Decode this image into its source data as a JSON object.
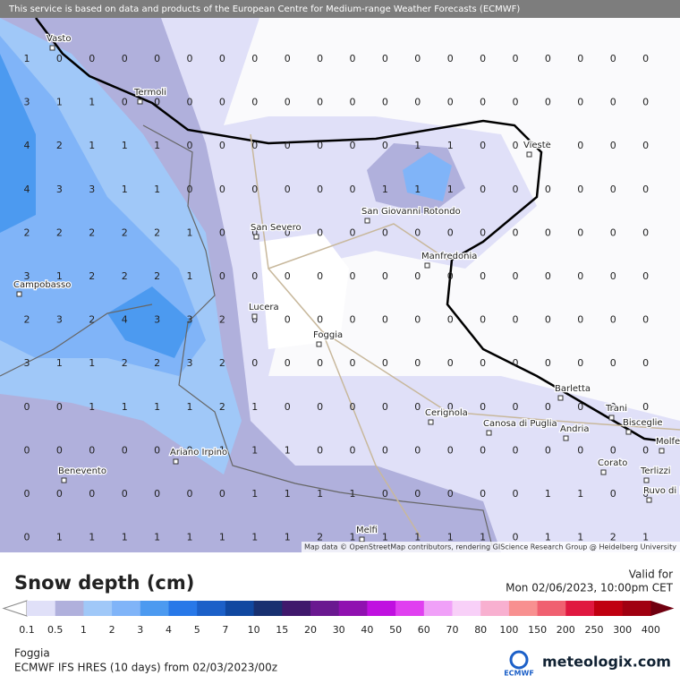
{
  "header": {
    "notice": "This service is based on data and products of the European Centre for Medium-range Weather Forecasts (ECMWF)"
  },
  "map": {
    "attribution": "Map data © OpenStreetMap contributors, rendering GIScience Research Group @ Heidelberg University",
    "cities": [
      "Vasto",
      "Termoli",
      "Vieste",
      "San Severo",
      "San Giovanni Rotondo",
      "Manfredonia",
      "Campobasso",
      "Lucera",
      "Foggia",
      "Barletta",
      "Trani",
      "Bisceglie",
      "Molfetta",
      "Cerignola",
      "Canosa di Puglia",
      "Andria",
      "Ariano Irpino",
      "Benevento",
      "Corato",
      "Terlizzi",
      "Ruvo di Puglia",
      "Melfi"
    ],
    "grid": [
      [
        1,
        0,
        0,
        0,
        0,
        0,
        0,
        0,
        0,
        0,
        0,
        0,
        0,
        0,
        0,
        0,
        0,
        0,
        0,
        0
      ],
      [
        3,
        1,
        1,
        0,
        0,
        0,
        0,
        0,
        0,
        0,
        0,
        0,
        0,
        0,
        0,
        0,
        0,
        0,
        0,
        0
      ],
      [
        4,
        2,
        1,
        1,
        1,
        0,
        0,
        0,
        0,
        0,
        0,
        0,
        1,
        1,
        0,
        0,
        0,
        0,
        0,
        0
      ],
      [
        4,
        3,
        3,
        1,
        1,
        0,
        0,
        0,
        0,
        0,
        0,
        1,
        1,
        1,
        0,
        0,
        0,
        0,
        0,
        0
      ],
      [
        2,
        2,
        2,
        2,
        2,
        1,
        0,
        0,
        0,
        0,
        0,
        0,
        0,
        0,
        0,
        0,
        0,
        0,
        0,
        0
      ],
      [
        3,
        1,
        2,
        2,
        2,
        1,
        0,
        0,
        0,
        0,
        0,
        0,
        0,
        0,
        0,
        0,
        0,
        0,
        0,
        0
      ],
      [
        2,
        3,
        2,
        4,
        3,
        3,
        2,
        0,
        0,
        0,
        0,
        0,
        0,
        0,
        0,
        0,
        0,
        0,
        0,
        0
      ],
      [
        3,
        1,
        1,
        2,
        2,
        3,
        2,
        0,
        0,
        0,
        0,
        0,
        0,
        0,
        0,
        0,
        0,
        0,
        0,
        0
      ],
      [
        0,
        0,
        1,
        1,
        1,
        1,
        2,
        1,
        0,
        0,
        0,
        0,
        0,
        0,
        0,
        0,
        0,
        0,
        0,
        0
      ],
      [
        0,
        0,
        0,
        0,
        0,
        0,
        1,
        1,
        1,
        0,
        0,
        0,
        0,
        0,
        0,
        0,
        0,
        0,
        0,
        0
      ],
      [
        0,
        0,
        0,
        0,
        0,
        0,
        0,
        1,
        1,
        1,
        1,
        0,
        0,
        0,
        0,
        0,
        1,
        1,
        0,
        0
      ],
      [
        0,
        1,
        1,
        1,
        1,
        1,
        1,
        1,
        1,
        2,
        1,
        1,
        1,
        1,
        1,
        0,
        1,
        1,
        2,
        1
      ]
    ]
  },
  "legend": {
    "title": "Snow depth (cm)",
    "labels": [
      "0.1",
      "0.5",
      "1",
      "2",
      "3",
      "4",
      "5",
      "7",
      "10",
      "15",
      "20",
      "30",
      "40",
      "50",
      "60",
      "70",
      "80",
      "100",
      "150",
      "200",
      "250",
      "300",
      "400"
    ],
    "colors": [
      "#e0e0f8",
      "#b0b0dc",
      "#a0c8f8",
      "#80b4f8",
      "#4c9af0",
      "#2878e8",
      "#1c60c8",
      "#1048a0",
      "#183070",
      "#40186c",
      "#6a1890",
      "#9010b0",
      "#c010e0",
      "#e040f0",
      "#f0a0f8",
      "#f8d0f8",
      "#f8b0d0",
      "#f89090",
      "#f06070",
      "#e01840",
      "#c00010",
      "#a00010",
      "#700010"
    ]
  },
  "valid": {
    "label": "Valid for",
    "time": "Mon 02/06/2023, 10:00pm CET"
  },
  "footer": {
    "location": "Foggia",
    "model": "ECMWF IFS HRES (10 days) from 02/03/2023/00z",
    "ecmwf": "ECMWF",
    "brand": "meteologix.com"
  }
}
